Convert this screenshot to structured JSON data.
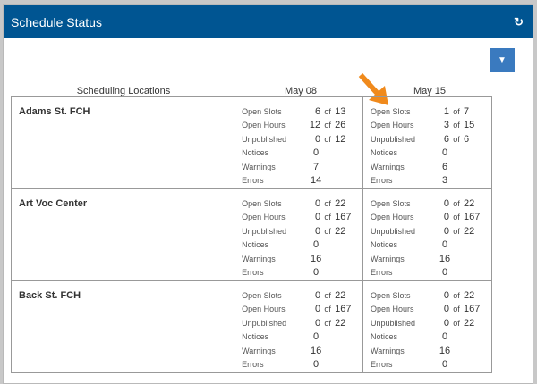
{
  "header": {
    "title": "Schedule Status",
    "refresh_icon": "refresh-icon"
  },
  "filter_icon": "filter-icon",
  "accent": "#005592",
  "columns": [
    "Scheduling Locations",
    "May 08",
    "May 15"
  ],
  "of_label": "of",
  "labels": [
    "Open Slots",
    "Open Hours",
    "Unpublished",
    "Notices",
    "Warnings",
    "Errors"
  ],
  "rows": [
    {
      "location": "Adams St. FCH",
      "days": [
        {
          "open_slots": [
            "6",
            "13"
          ],
          "open_hours": [
            "12",
            "26"
          ],
          "unpublished": [
            "0",
            "12"
          ],
          "notices": "0",
          "warnings": "7",
          "errors": "14"
        },
        {
          "open_slots": [
            "1",
            "7"
          ],
          "open_hours": [
            "3",
            "15"
          ],
          "unpublished": [
            "6",
            "6"
          ],
          "notices": "0",
          "warnings": "6",
          "errors": "3"
        }
      ]
    },
    {
      "location": "Art Voc Center",
      "days": [
        {
          "open_slots": [
            "0",
            "22"
          ],
          "open_hours": [
            "0",
            "167"
          ],
          "unpublished": [
            "0",
            "22"
          ],
          "notices": "0",
          "warnings": "16",
          "errors": "0"
        },
        {
          "open_slots": [
            "0",
            "22"
          ],
          "open_hours": [
            "0",
            "167"
          ],
          "unpublished": [
            "0",
            "22"
          ],
          "notices": "0",
          "warnings": "16",
          "errors": "0"
        }
      ]
    },
    {
      "location": "Back St. FCH",
      "days": [
        {
          "open_slots": [
            "0",
            "22"
          ],
          "open_hours": [
            "0",
            "167"
          ],
          "unpublished": [
            "0",
            "22"
          ],
          "notices": "0",
          "warnings": "16",
          "errors": "0"
        },
        {
          "open_slots": [
            "0",
            "22"
          ],
          "open_hours": [
            "0",
            "167"
          ],
          "unpublished": [
            "0",
            "22"
          ],
          "notices": "0",
          "warnings": "16",
          "errors": "0"
        }
      ]
    }
  ]
}
